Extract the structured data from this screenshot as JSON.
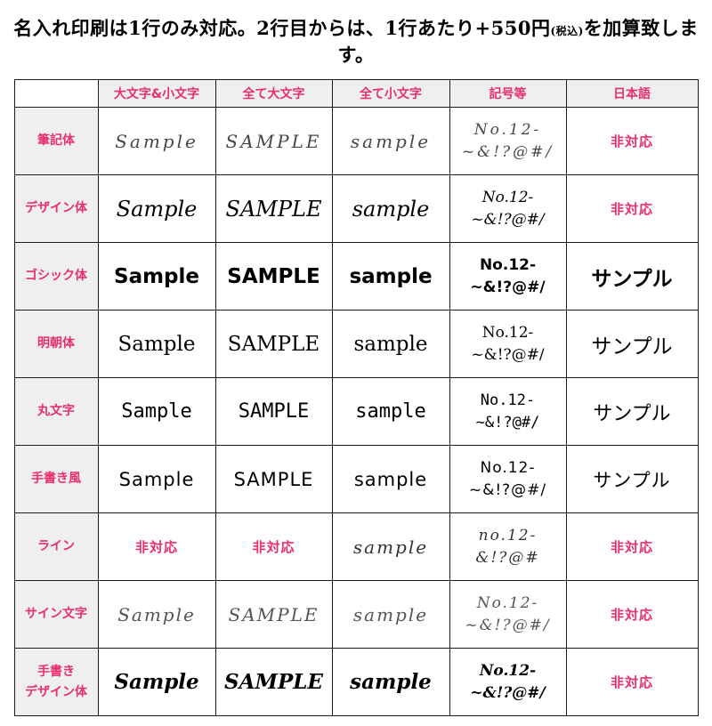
{
  "notice": {
    "before": "名入れ印刷は1行のみ対応。2行目からは、1行あたり+550円",
    "small": "(税込)",
    "after": "を加算致します。"
  },
  "colors": {
    "accent_pink": "#e82f6d",
    "header_bg": "#efefef",
    "grid_border": "#1a1a1a",
    "diagonal_line": "#999999"
  },
  "table": {
    "unsupported_label": "非対応",
    "headers": [
      "",
      "大文字&小文字",
      "全て大文字",
      "全て小文字",
      "記号等",
      "日本語"
    ],
    "rows": [
      {
        "label": "筆記体",
        "style": "script",
        "cells": [
          "Sample",
          "SAMPLE",
          "sample",
          "No.12-\n~&!?@#/",
          null
        ]
      },
      {
        "label": "デザイン体",
        "style": "design",
        "cells": [
          "Sample",
          "SAMPLE",
          "sample",
          "No.12-\n~&!?@#/",
          null
        ]
      },
      {
        "label": "ゴシック体",
        "style": "gothic",
        "cells": [
          "Sample",
          "SAMPLE",
          "sample",
          "No.12-\n~&!?@#/",
          "サンプル"
        ]
      },
      {
        "label": "明朝体",
        "style": "mincho",
        "cells": [
          "Sample",
          "SAMPLE",
          "sample",
          "No.12-\n~&!?@#/",
          "サンプル"
        ]
      },
      {
        "label": "丸文字",
        "style": "maru",
        "cells": [
          "Sample",
          "SAMPLE",
          "sample",
          "No.12-\n~&!?@#/",
          "サンプル"
        ]
      },
      {
        "label": "手書き風",
        "style": "tegaki",
        "cells": [
          "Sample",
          "SAMPLE",
          "sample",
          "No.12-\n~&!?@#/",
          "サンプル"
        ]
      },
      {
        "label": "ライン",
        "style": "line",
        "cells": [
          null,
          null,
          "sample",
          "no.12-\n&!?@#",
          null
        ]
      },
      {
        "label": "サイン文字",
        "style": "sign",
        "cells": [
          "Sample",
          "SAMPLE",
          "sample",
          "No.12-\n~&!?@#/",
          null
        ]
      },
      {
        "label": "手書き\nデザイン体",
        "style": "tegakidesign",
        "cells": [
          "Sample",
          "SAMPLE",
          "sample",
          "No.12-\n~&!?@#/",
          null
        ]
      }
    ]
  }
}
